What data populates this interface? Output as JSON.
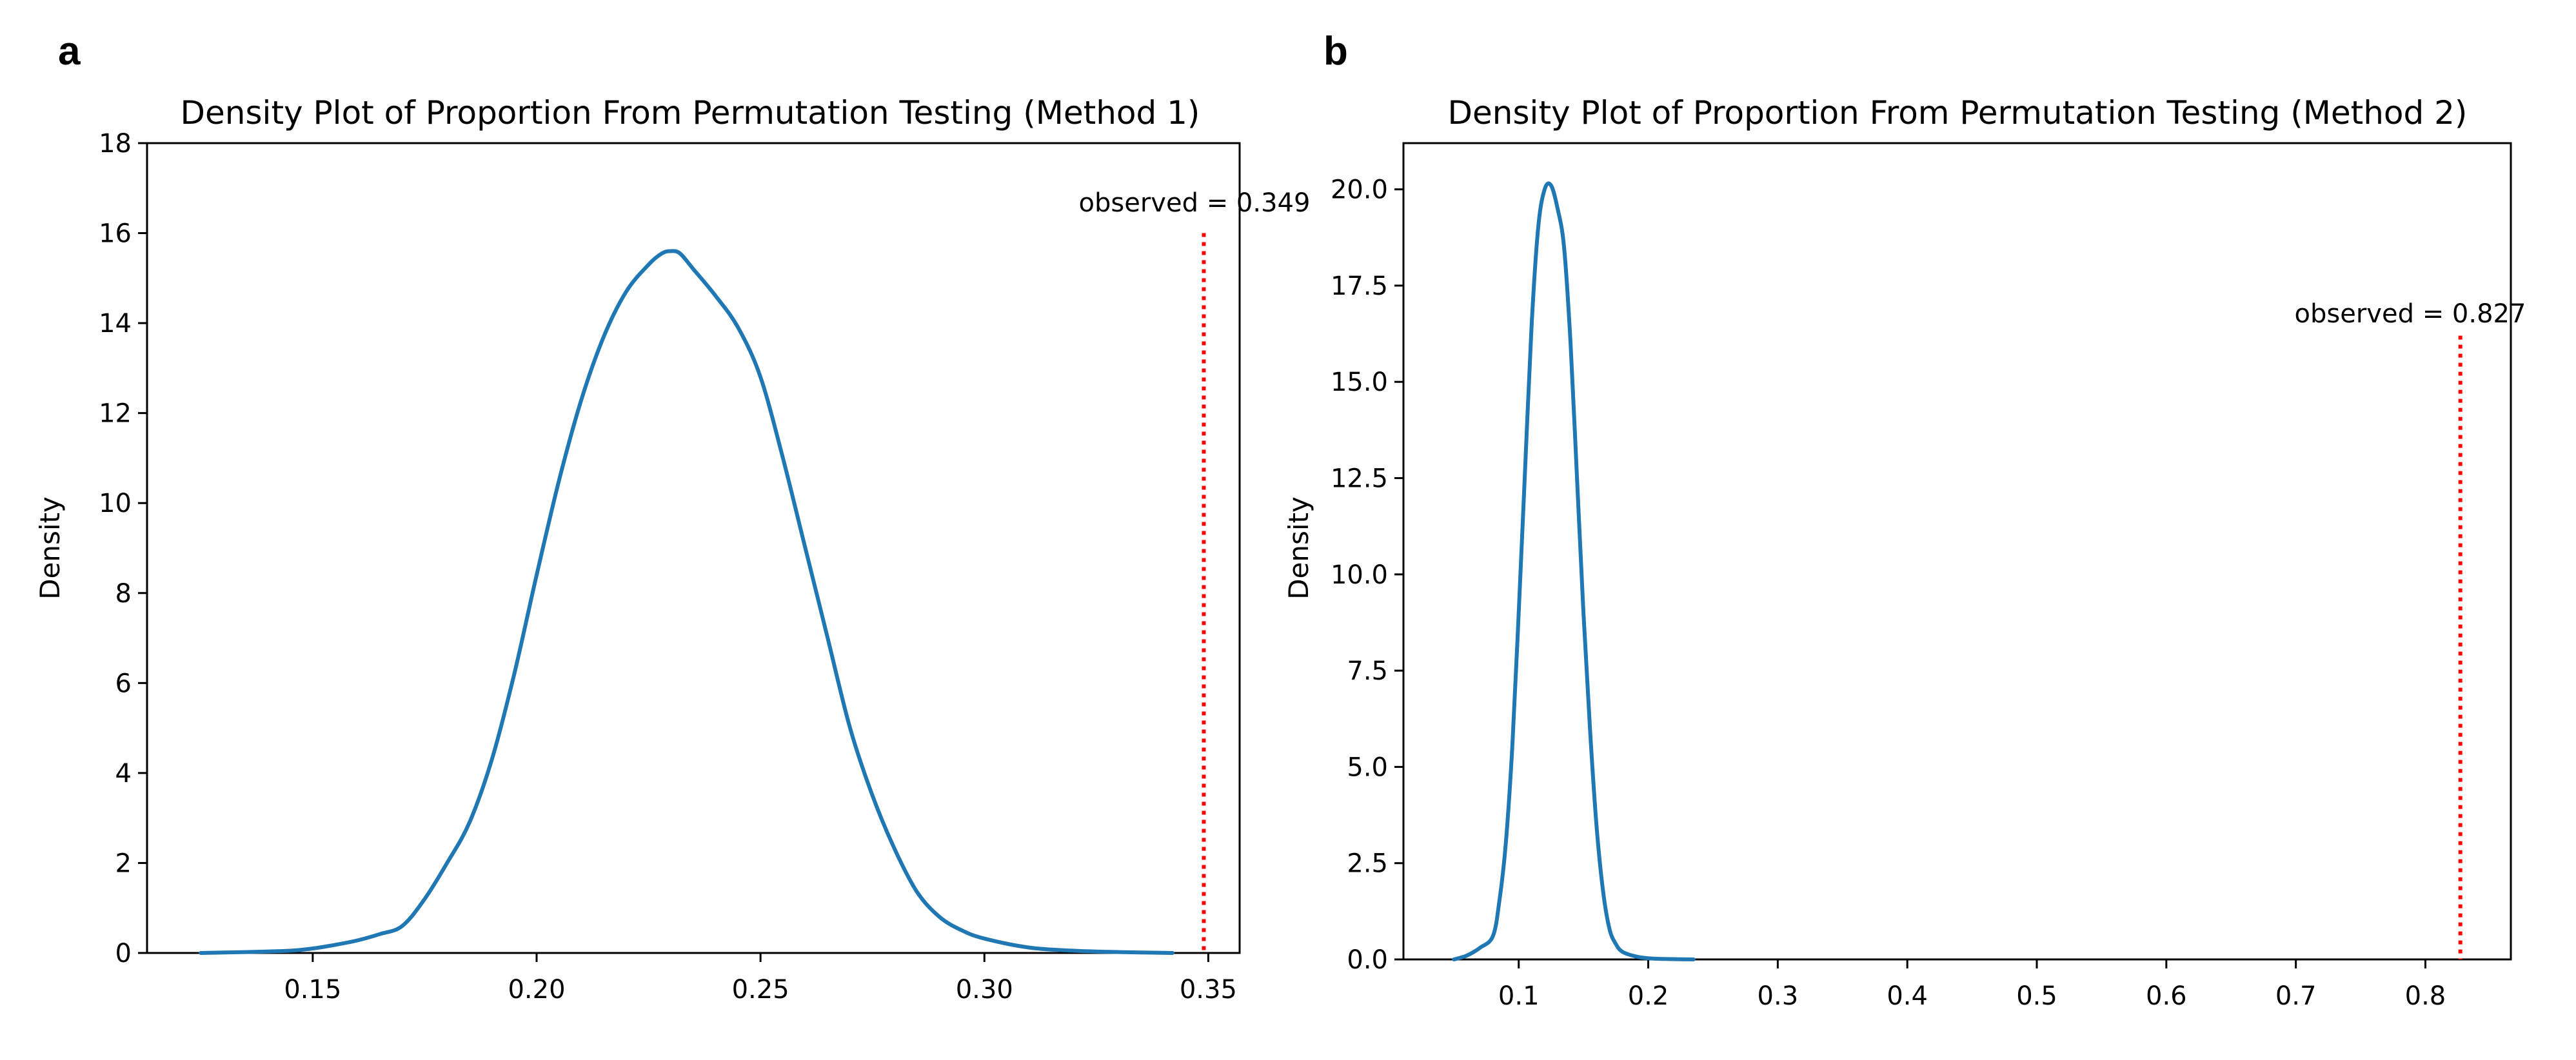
{
  "chart_data": [
    {
      "panel_label": "a",
      "type": "line",
      "title": "Density Plot of Proportion From Permutation Testing (Method 1)",
      "xlabel": "",
      "ylabel": "Density",
      "xlim": [
        0.113,
        0.357
      ],
      "ylim": [
        0,
        18
      ],
      "xticks": [
        0.15,
        0.2,
        0.25,
        0.3,
        0.35
      ],
      "xtick_labels": [
        "0.15",
        "0.20",
        "0.25",
        "0.30",
        "0.35"
      ],
      "yticks": [
        0,
        2,
        4,
        6,
        8,
        10,
        12,
        14,
        16,
        18
      ],
      "ytick_labels": [
        "0",
        "2",
        "4",
        "6",
        "8",
        "10",
        "12",
        "14",
        "16",
        "18"
      ],
      "grid": false,
      "series": [
        {
          "name": "density",
          "color": "#1f77b4",
          "x": [
            0.125,
            0.135,
            0.145,
            0.15,
            0.155,
            0.16,
            0.165,
            0.17,
            0.175,
            0.18,
            0.185,
            0.19,
            0.195,
            0.2,
            0.205,
            0.21,
            0.215,
            0.22,
            0.225,
            0.228,
            0.23,
            0.232,
            0.235,
            0.24,
            0.245,
            0.25,
            0.255,
            0.26,
            0.265,
            0.27,
            0.275,
            0.28,
            0.285,
            0.29,
            0.295,
            0.3,
            0.31,
            0.32,
            0.33,
            0.342
          ],
          "y": [
            0.0,
            0.02,
            0.05,
            0.1,
            0.18,
            0.28,
            0.42,
            0.6,
            1.2,
            2.0,
            2.9,
            4.3,
            6.2,
            8.4,
            10.5,
            12.3,
            13.7,
            14.7,
            15.3,
            15.55,
            15.6,
            15.55,
            15.2,
            14.6,
            13.9,
            12.8,
            11.0,
            9.0,
            7.0,
            5.0,
            3.5,
            2.3,
            1.35,
            0.8,
            0.5,
            0.32,
            0.12,
            0.05,
            0.02,
            0.0
          ]
        }
      ],
      "observed": {
        "value": 0.349,
        "label": "observed = 0.349",
        "line_top": 16,
        "color": "#ff0000"
      }
    },
    {
      "panel_label": "b",
      "type": "line",
      "title": "Density Plot of Proportion From Permutation Testing (Method 2)",
      "xlabel": "",
      "ylabel": "Density",
      "xlim": [
        0.011,
        0.866
      ],
      "ylim": [
        0,
        21.2
      ],
      "xticks": [
        0.1,
        0.2,
        0.3,
        0.4,
        0.5,
        0.6,
        0.7,
        0.8
      ],
      "xtick_labels": [
        "0.1",
        "0.2",
        "0.3",
        "0.4",
        "0.5",
        "0.6",
        "0.7",
        "0.8"
      ],
      "yticks": [
        0.0,
        2.5,
        5.0,
        7.5,
        10.0,
        12.5,
        15.0,
        17.5,
        20.0
      ],
      "ytick_labels": [
        "0.0",
        "2.5",
        "5.0",
        "7.5",
        "10.0",
        "12.5",
        "15.0",
        "17.5",
        "20.0"
      ],
      "grid": false,
      "series": [
        {
          "name": "density",
          "color": "#1f77b4",
          "x": [
            0.05,
            0.06,
            0.07,
            0.08,
            0.085,
            0.09,
            0.095,
            0.1,
            0.105,
            0.11,
            0.115,
            0.12,
            0.125,
            0.13,
            0.135,
            0.14,
            0.145,
            0.15,
            0.155,
            0.16,
            0.165,
            0.17,
            0.175,
            0.18,
            0.19,
            0.2,
            0.215,
            0.235
          ],
          "y": [
            0.0,
            0.1,
            0.3,
            0.6,
            1.5,
            3.0,
            5.5,
            9.0,
            12.8,
            16.5,
            19.0,
            20.0,
            20.1,
            19.5,
            18.5,
            16.0,
            12.5,
            9.0,
            6.0,
            3.5,
            1.8,
            0.8,
            0.4,
            0.2,
            0.08,
            0.03,
            0.01,
            0.0
          ]
        }
      ],
      "observed": {
        "value": 0.827,
        "label": "observed = 0.827",
        "line_top": 16.2,
        "color": "#ff0000"
      }
    }
  ]
}
